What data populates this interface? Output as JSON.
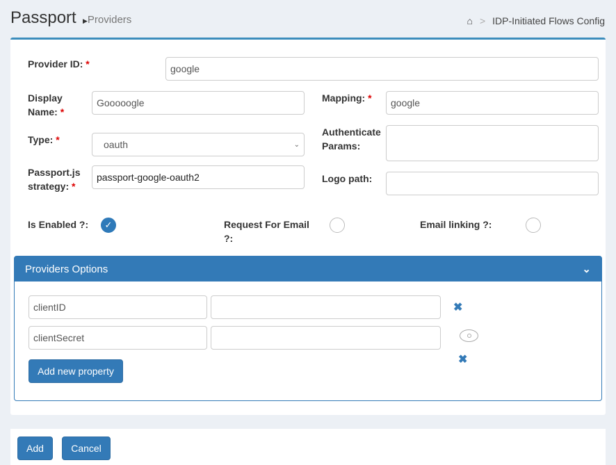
{
  "header": {
    "title": "Passport",
    "subtitle": "Providers",
    "breadcrumb_sep": ">",
    "breadcrumb": "IDP-Initiated Flows Config"
  },
  "form": {
    "provider_id": {
      "label": "Provider ID:",
      "value": "google"
    },
    "display_name": {
      "label1": "Display",
      "label2": "Name:",
      "value": "Gooooogle"
    },
    "mapping": {
      "label": "Mapping:",
      "value": "google"
    },
    "type": {
      "label": "Type:",
      "value": "oauth"
    },
    "auth_params": {
      "label1": "Authenticate",
      "label2": "Params:",
      "value": ""
    },
    "strategy": {
      "label1": "Passport.js",
      "label2": "strategy:",
      "value": "passport-google-oauth2"
    },
    "logo_path": {
      "label": "Logo path:",
      "value": ""
    },
    "is_enabled": {
      "label": "Is Enabled ?:",
      "checked": true
    },
    "request_email": {
      "label1": "Request For Email",
      "label2": "?:",
      "checked": false
    },
    "email_linking": {
      "label": "Email linking ?:",
      "checked": false
    },
    "required_mark": "*"
  },
  "options": {
    "title": "Providers Options",
    "rows": [
      {
        "key": "clientID",
        "value": ""
      },
      {
        "key": "clientSecret",
        "value": ""
      }
    ],
    "add_label": "Add new property"
  },
  "footer": {
    "add": "Add",
    "cancel": "Cancel"
  }
}
